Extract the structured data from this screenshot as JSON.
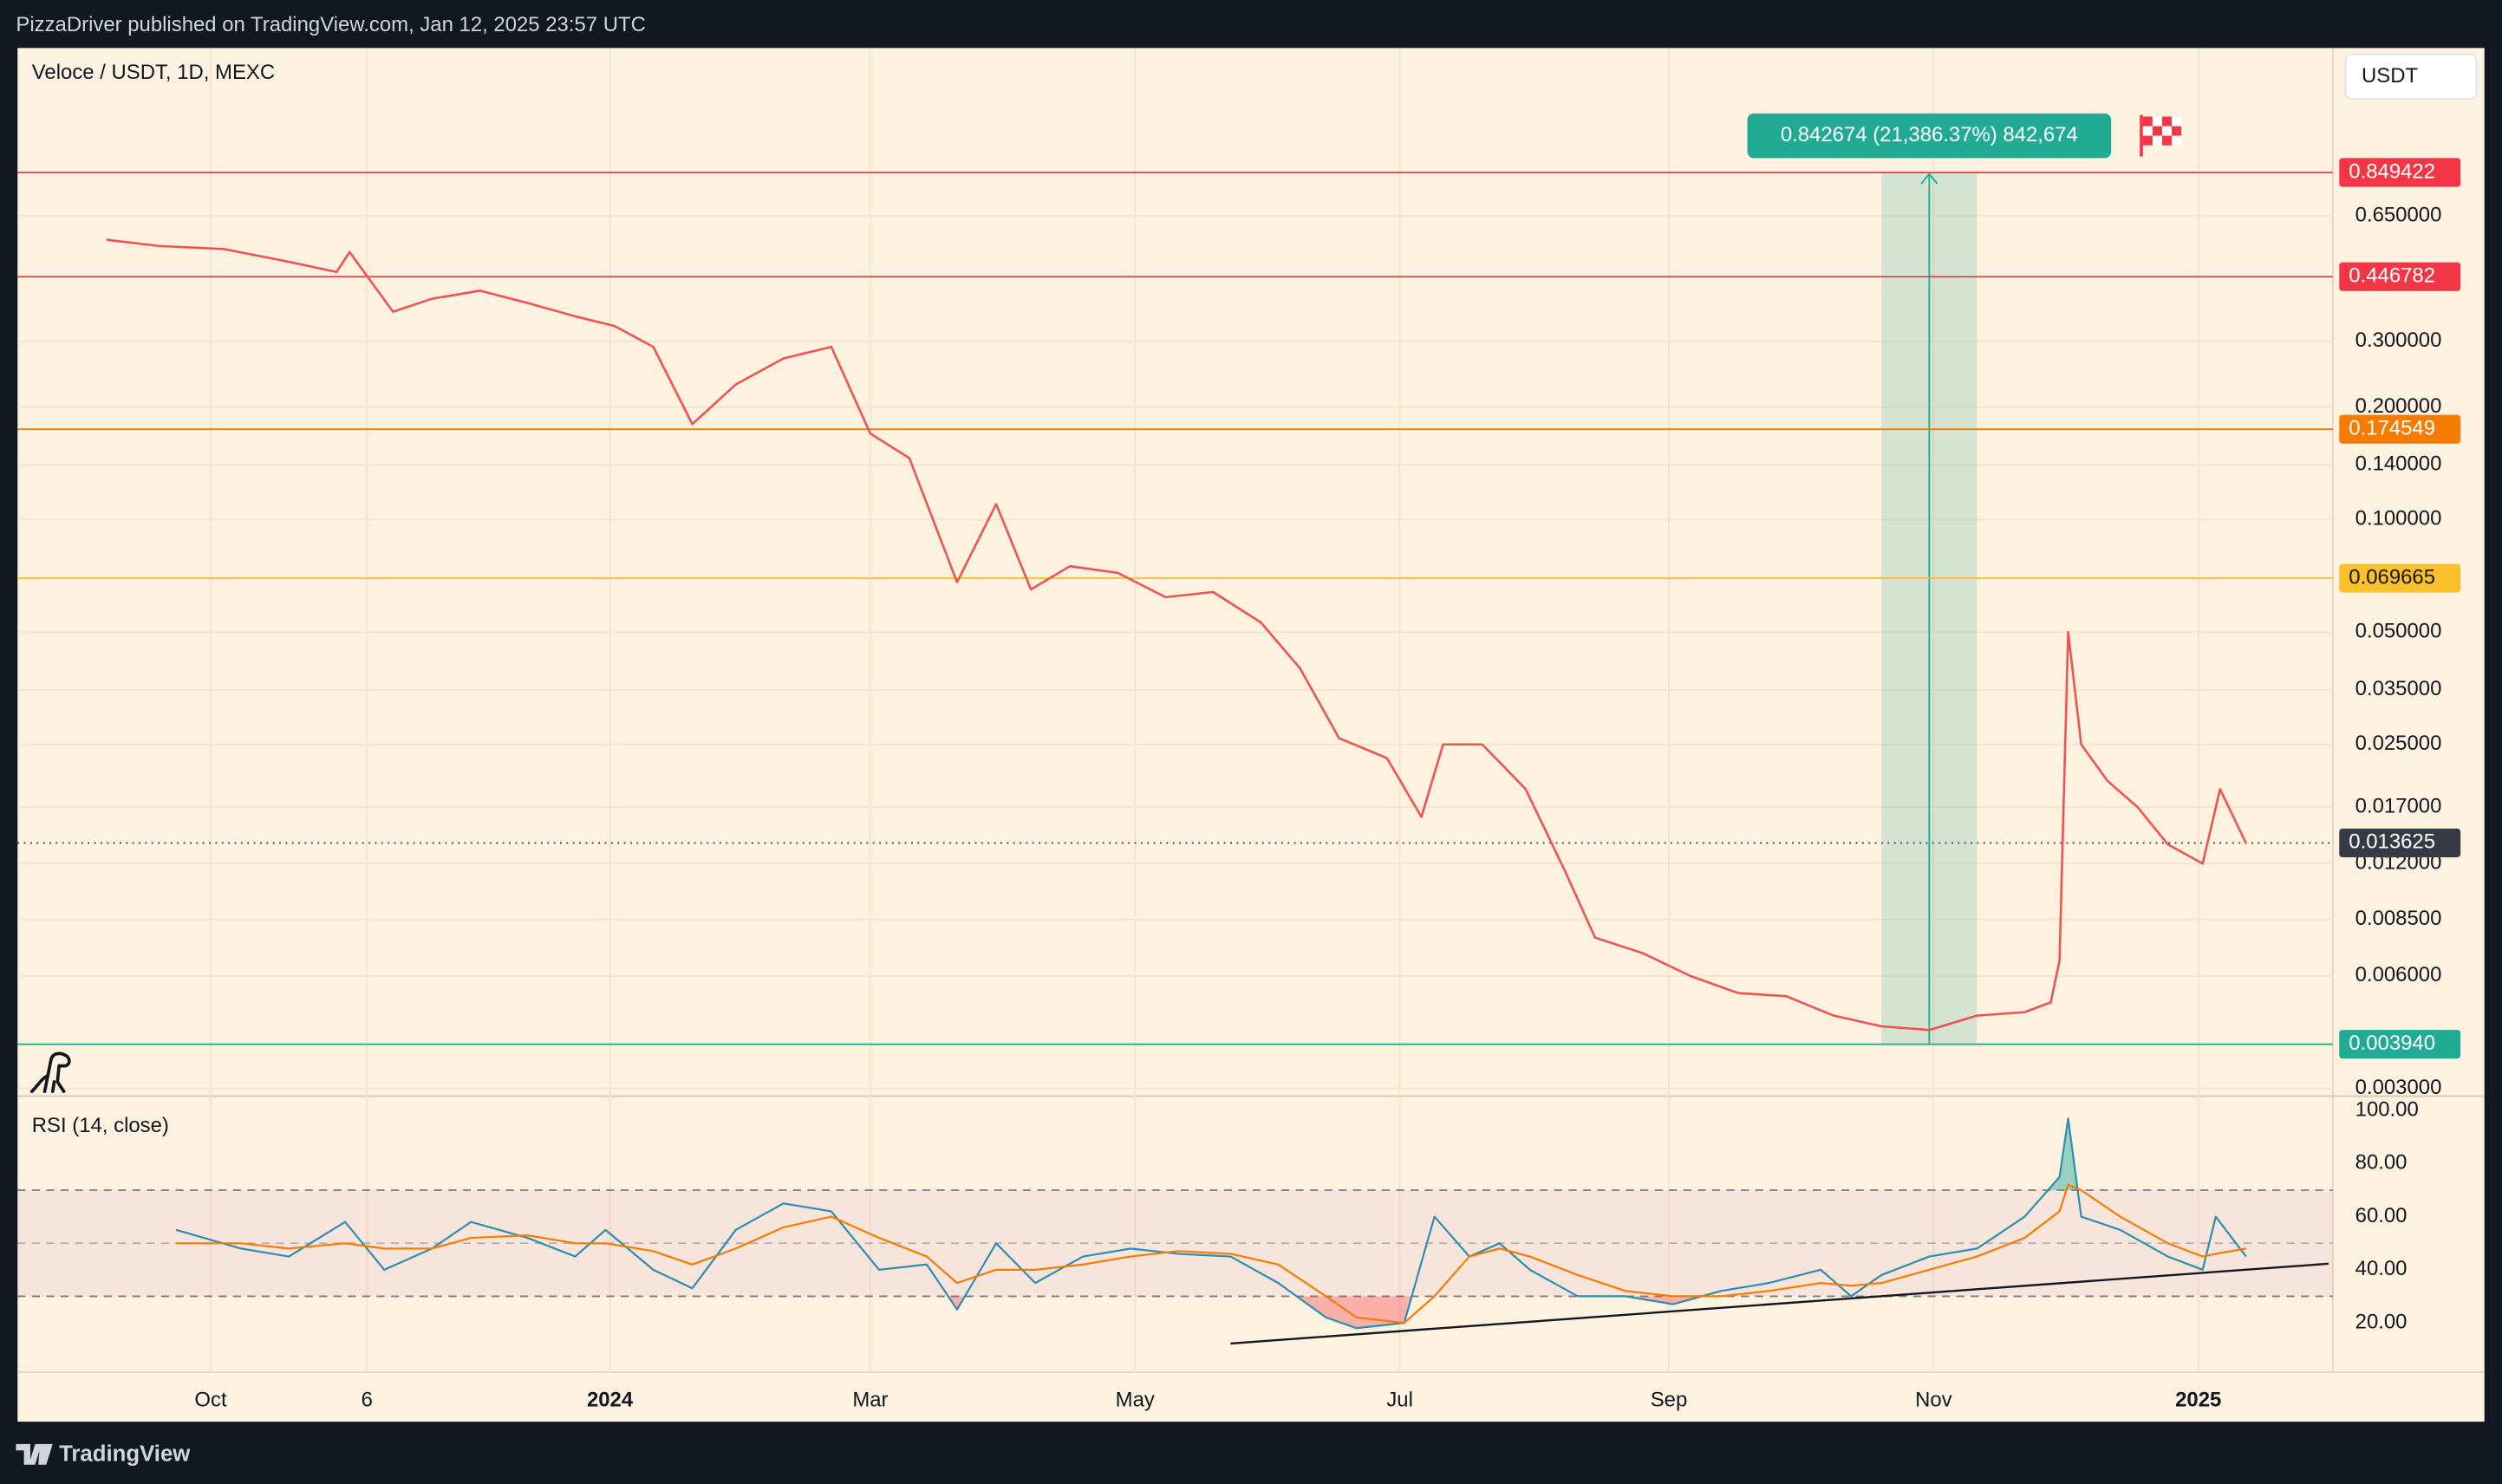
{
  "header": {
    "publisher": "PizzaDriver published on TradingView.com, Jan 12, 2025 23:57 UTC"
  },
  "footer": {
    "brand": "TradingView"
  },
  "chart_data": [
    {
      "type": "line",
      "title": "Veloce / USDT, 1D, MEXC",
      "currency_button": "USDT",
      "log_scale": true,
      "grid": true,
      "color": "#ef5350",
      "x": [
        -24,
        -12,
        3,
        18,
        29,
        32,
        42,
        51,
        62,
        73,
        84,
        93,
        102,
        111,
        121,
        132,
        143,
        152,
        161,
        172,
        181,
        189,
        198,
        209,
        220,
        231,
        242,
        251,
        260,
        271,
        279,
        284,
        293,
        303,
        312,
        319,
        330,
        341,
        352,
        363,
        374,
        385,
        396,
        407,
        418,
        424,
        426,
        428,
        431,
        437,
        444,
        451,
        459,
        463,
        469
      ],
      "values": [
        0.561,
        0.54,
        0.53,
        0.49,
        0.46,
        0.52,
        0.36,
        0.39,
        0.41,
        0.38,
        0.35,
        0.33,
        0.29,
        0.18,
        0.23,
        0.27,
        0.29,
        0.17,
        0.146,
        0.068,
        0.11,
        0.065,
        0.075,
        0.072,
        0.062,
        0.064,
        0.053,
        0.04,
        0.026,
        0.023,
        0.016,
        0.025,
        0.025,
        0.019,
        0.0115,
        0.0076,
        0.0069,
        0.006,
        0.0054,
        0.0053,
        0.0047,
        0.0044,
        0.0043,
        0.0047,
        0.0048,
        0.0051,
        0.0066,
        0.05,
        0.025,
        0.02,
        0.017,
        0.0135,
        0.012,
        0.019,
        0.0136
      ],
      "xlim": [
        -44.5,
        489
      ],
      "xticks": [
        {
          "value": 0,
          "label": "Oct"
        },
        {
          "value": 36,
          "label": "6"
        },
        {
          "value": 92,
          "label": "2024",
          "bold": true
        },
        {
          "value": 152,
          "label": "Mar"
        },
        {
          "value": 213,
          "label": "May"
        },
        {
          "value": 274,
          "label": "Jul"
        },
        {
          "value": 336,
          "label": "Sep"
        },
        {
          "value": 397,
          "label": "Nov"
        },
        {
          "value": 458,
          "label": "2025",
          "bold": true
        }
      ],
      "ylim": [
        0.00286,
        1.83
      ],
      "yticks": [
        {
          "value": 0.65,
          "label": "0.650000"
        },
        {
          "value": 0.3,
          "label": "0.300000"
        },
        {
          "value": 0.2,
          "label": "0.200000"
        },
        {
          "value": 0.14,
          "label": "0.140000"
        },
        {
          "value": 0.1,
          "label": "0.100000"
        },
        {
          "value": 0.05,
          "label": "0.050000"
        },
        {
          "value": 0.035,
          "label": "0.035000"
        },
        {
          "value": 0.025,
          "label": "0.025000"
        },
        {
          "value": 0.017,
          "label": "0.017000"
        },
        {
          "value": 0.012,
          "label": "0.012000"
        },
        {
          "value": 0.0085,
          "label": "0.008500"
        },
        {
          "value": 0.006,
          "label": "0.006000"
        },
        {
          "value": 0.003,
          "label": "0.003000"
        }
      ],
      "levels": [
        {
          "value": 0.849422,
          "color": "#f23645"
        },
        {
          "value": 0.446782,
          "color": "#f23645"
        },
        {
          "value": 0.174549,
          "color": "#f57c00"
        },
        {
          "value": 0.069665,
          "color": "#fbc02d"
        },
        {
          "value": 0.013625,
          "color": "#363a45",
          "dotted": true
        },
        {
          "value": 0.00394,
          "label": "0.003940",
          "color": "#22ab94"
        }
      ],
      "measure": {
        "label": "0.842674 (21,386.37%) 842,674",
        "x_range": [
          385,
          407
        ],
        "color": "#22ab94"
      }
    },
    {
      "type": "rsi",
      "title": "RSI (14, close)",
      "x": [
        -8,
        7,
        18,
        31,
        40,
        51,
        60,
        73,
        84,
        91,
        102,
        111,
        121,
        132,
        143,
        154,
        165,
        172,
        181,
        190,
        201,
        212,
        223,
        235,
        246,
        257,
        264,
        275,
        282,
        290,
        297,
        304,
        315,
        326,
        337,
        348,
        359,
        371,
        378,
        385,
        396,
        407,
        418,
        426,
        428,
        431,
        440,
        451,
        459,
        462,
        469
      ],
      "series": [
        {
          "color": "#2a8fb0",
          "values": [
            55,
            48,
            45,
            58,
            40,
            48,
            58,
            52,
            45,
            55,
            40,
            33,
            55,
            65,
            62,
            40,
            42,
            25,
            50,
            35,
            45,
            48,
            46,
            45,
            35,
            22,
            18,
            20,
            60,
            45,
            50,
            40,
            30,
            30,
            27,
            32,
            35,
            40,
            30,
            38,
            45,
            48,
            60,
            75,
            97,
            60,
            55,
            45,
            40,
            60,
            45
          ]
        },
        {
          "color": "#f57c00",
          "values": [
            50,
            50,
            48,
            50,
            48,
            48,
            52,
            53,
            50,
            50,
            47,
            42,
            48,
            56,
            60,
            52,
            45,
            35,
            40,
            40,
            42,
            45,
            47,
            46,
            42,
            30,
            22,
            20,
            30,
            45,
            48,
            45,
            38,
            32,
            30,
            30,
            32,
            35,
            34,
            35,
            40,
            45,
            52,
            62,
            72,
            70,
            60,
            50,
            45,
            46,
            48
          ]
        }
      ],
      "bands": [
        30,
        70
      ],
      "midline": 50,
      "ylim": [
        1.4,
        105.4
      ],
      "yticks": [
        {
          "value": 100,
          "label": "100.00"
        },
        {
          "value": 80,
          "label": "80.00"
        },
        {
          "value": 60,
          "label": "60.00"
        },
        {
          "value": 40,
          "label": "40.00"
        },
        {
          "value": 20,
          "label": "20.00"
        }
      ],
      "trendline": {
        "x": [
          235,
          488
        ],
        "values": [
          12.2,
          42.3
        ]
      }
    }
  ]
}
